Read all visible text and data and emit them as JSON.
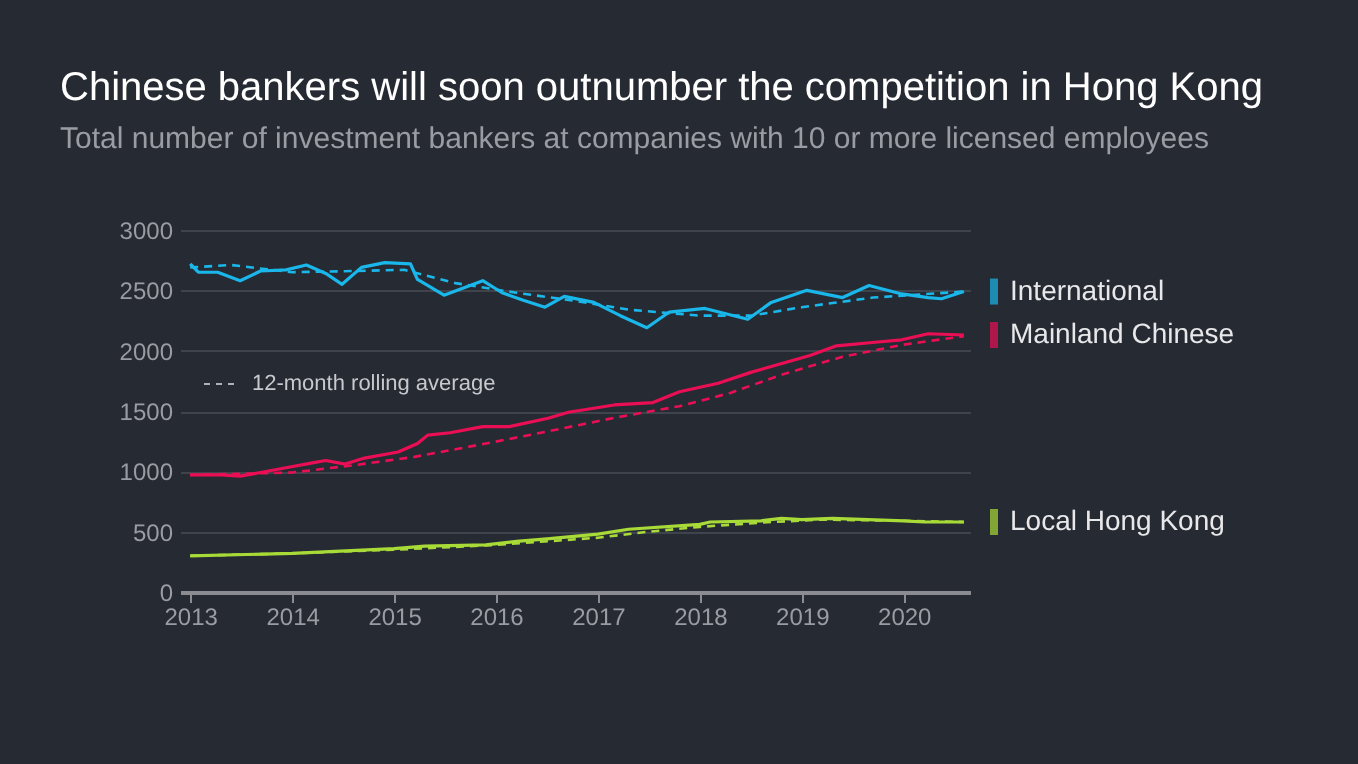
{
  "chart_data": {
    "type": "line",
    "title": "Chinese bankers will soon outnumber the competition in Hong Kong",
    "subtitle": "Total number of investment bankers at companies with 10 or more licensed employees",
    "annotations": [
      "12-month rolling average"
    ],
    "xlim": [
      2012.9,
      2020.65
    ],
    "xticks": [
      2013,
      2014,
      2015,
      2016,
      2017,
      2018,
      2019,
      2020
    ],
    "ylim": [
      0,
      3000
    ],
    "yticks": [
      0,
      500,
      1000,
      1500,
      2000,
      2500,
      3000
    ],
    "grid": "y",
    "legend": "right",
    "series": [
      {
        "name": "International",
        "color": "#1ab7ea",
        "line_style": "solid",
        "x": [
          2013.0,
          2013.08,
          2013.27,
          2013.49,
          2013.69,
          2013.94,
          2014.14,
          2014.33,
          2014.49,
          2014.68,
          2014.91,
          2015.16,
          2015.23,
          2015.49,
          2015.87,
          2016.06,
          2016.26,
          2016.48,
          2016.67,
          2016.96,
          2017.22,
          2017.48,
          2017.7,
          2018.05,
          2018.47,
          2018.7,
          2019.05,
          2019.4,
          2019.66,
          2019.98,
          2020.24,
          2020.37,
          2020.59
        ],
        "values": [
          2720,
          2650,
          2650,
          2580,
          2660,
          2670,
          2710,
          2640,
          2550,
          2690,
          2730,
          2720,
          2590,
          2460,
          2580,
          2480,
          2420,
          2360,
          2450,
          2400,
          2290,
          2190,
          2320,
          2350,
          2260,
          2400,
          2500,
          2440,
          2540,
          2470,
          2440,
          2430,
          2490
        ]
      },
      {
        "name": "Mainland Chinese",
        "color": "#ea0f55",
        "line_style": "solid",
        "x": [
          2013.0,
          2013.3,
          2013.49,
          2013.69,
          2013.94,
          2014.2,
          2014.33,
          2014.52,
          2014.71,
          2015.04,
          2015.23,
          2015.33,
          2015.55,
          2015.87,
          2016.13,
          2016.51,
          2016.71,
          2017.16,
          2017.54,
          2017.8,
          2018.18,
          2018.5,
          2018.83,
          2019.08,
          2019.34,
          2019.72,
          2019.98,
          2020.24,
          2020.59
        ],
        "values": [
          970,
          970,
          960,
          990,
          1030,
          1070,
          1090,
          1060,
          1110,
          1160,
          1230,
          1300,
          1320,
          1370,
          1370,
          1440,
          1490,
          1550,
          1570,
          1660,
          1730,
          1820,
          1900,
          1960,
          2040,
          2070,
          2090,
          2140,
          2130
        ]
      },
      {
        "name": "Local Hong Kong",
        "color": "#a8db37",
        "line_style": "solid",
        "x": [
          2013.0,
          2014.0,
          2015.0,
          2015.3,
          2015.9,
          2016.2,
          2016.5,
          2017.0,
          2017.3,
          2018.0,
          2018.1,
          2018.6,
          2018.8,
          2019.0,
          2019.3,
          2020.0,
          2020.2,
          2020.59
        ],
        "values": [
          300,
          320,
          360,
          380,
          390,
          420,
          440,
          480,
          520,
          560,
          580,
          590,
          610,
          600,
          610,
          590,
          580,
          580
        ]
      },
      {
        "color": "#1ab7ea",
        "line_style": "dashed",
        "x": [
          2013.0,
          2013.4,
          2014.0,
          2014.6,
          2015.1,
          2015.6,
          2016.2,
          2016.8,
          2017.3,
          2018.0,
          2018.5,
          2019.0,
          2019.7,
          2020.59
        ],
        "values": [
          2690,
          2710,
          2650,
          2660,
          2670,
          2560,
          2480,
          2410,
          2340,
          2290,
          2290,
          2360,
          2440,
          2490
        ]
      },
      {
        "color": "#ea0f55",
        "line_style": "dashed",
        "x": [
          2013.0,
          2014.0,
          2014.6,
          2015.2,
          2015.9,
          2016.5,
          2017.2,
          2017.8,
          2018.3,
          2018.8,
          2019.4,
          2020.0,
          2020.59
        ],
        "values": [
          970,
          990,
          1050,
          1120,
          1230,
          1330,
          1450,
          1540,
          1650,
          1800,
          1950,
          2050,
          2120
        ]
      },
      {
        "color": "#a8db37",
        "line_style": "dashed",
        "x": [
          2013.0,
          2014.0,
          2015.0,
          2016.0,
          2017.0,
          2017.5,
          2018.0,
          2018.7,
          2019.2,
          2020.0,
          2020.59
        ],
        "values": [
          300,
          320,
          350,
          390,
          450,
          500,
          540,
          580,
          600,
          590,
          580
        ]
      }
    ]
  }
}
